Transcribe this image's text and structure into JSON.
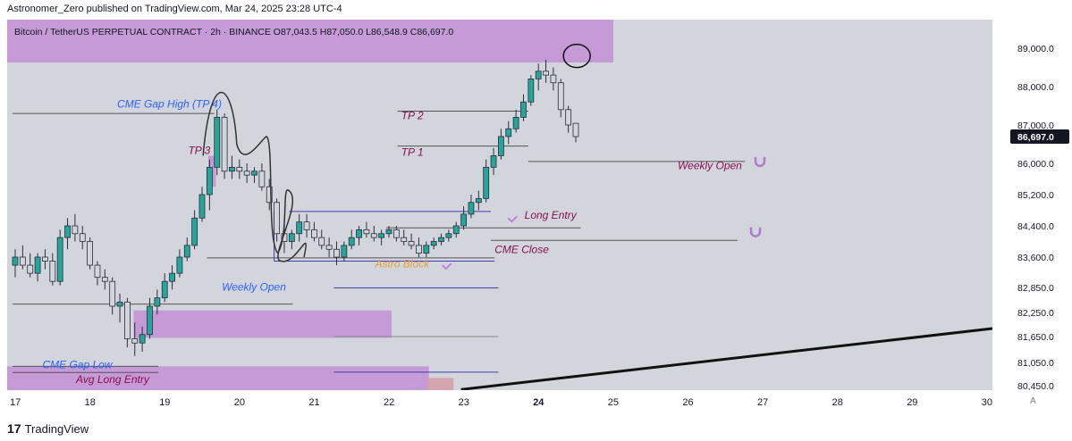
{
  "header": {
    "publisher": "Astronomer_Zero published on TradingView.com, Mar 24, 2025 23:28 UTC-4"
  },
  "footer": {
    "logo": "17",
    "brand": "TradingView"
  },
  "axis_corner": "A",
  "colors": {
    "up": "#26a69a",
    "down": "#787b86",
    "zone": "#c28fd6",
    "blue_label": "#2962ff",
    "red_label": "#880e4f"
  },
  "chart_data": {
    "type": "candlestick",
    "title": "Bitcoin / TetherUS PERPETUAL CONTRACT · 2h · BINANCE O87,043.5 H87,050.0 L86,548.9 C86,697.0",
    "price_scale": [
      89000.0,
      88000.0,
      87000.0,
      86000.0,
      85200.0,
      84400.0,
      83600.0,
      82850.0,
      82250.0,
      81650.0,
      81050.0,
      80450.0
    ],
    "price_tick_labels": [
      "89,000.0",
      "88,000.0",
      "87,000.0",
      "86,000.0",
      "85,200.0",
      "84,400.0",
      "83,600.0",
      "82,850.0",
      "82,250.0",
      "81,650.0",
      "81,050.0",
      "80,450.0"
    ],
    "last_price": 86697.0,
    "last_price_label": "86,697.0",
    "date_labels": [
      {
        "label": "17",
        "day": 17
      },
      {
        "label": "18",
        "day": 18
      },
      {
        "label": "19",
        "day": 19
      },
      {
        "label": "20",
        "day": 20
      },
      {
        "label": "21",
        "day": 21
      },
      {
        "label": "22",
        "day": 22
      },
      {
        "label": "23",
        "day": 23
      },
      {
        "label": "24",
        "day": 24
      },
      {
        "label": "25",
        "day": 25
      },
      {
        "label": "26",
        "day": 26
      },
      {
        "label": "27",
        "day": 27
      },
      {
        "label": "28",
        "day": 28
      },
      {
        "label": "29",
        "day": 29
      },
      {
        "label": "30",
        "day": 30
      }
    ],
    "annotations": [
      {
        "text": "CME Gap High (TP 4)",
        "day": 18.4,
        "price": 87450,
        "color": "blue"
      },
      {
        "text": "TP 3",
        "day": 19.35,
        "price": 86250,
        "color": "red"
      },
      {
        "text": "TP 2",
        "day": 22.2,
        "price": 87150,
        "color": "red"
      },
      {
        "text": "TP 1",
        "day": 22.2,
        "price": 86200,
        "color": "red"
      },
      {
        "text": "Weekly Open",
        "day": 25.9,
        "price": 85850,
        "color": "red"
      },
      {
        "text": "Long Entry",
        "day": 23.85,
        "price": 84580,
        "color": "red"
      },
      {
        "text": "CME Close",
        "day": 23.45,
        "price": 83700,
        "color": "red"
      },
      {
        "text": "Astro Block",
        "day": 21.85,
        "price": 83350,
        "color": "orange"
      },
      {
        "text": "Weekly Open",
        "day": 19.8,
        "price": 82780,
        "color": "blue"
      },
      {
        "text": "CME Gap Low",
        "day": 17.4,
        "price": 80900,
        "color": "blue"
      },
      {
        "text": "Avg Long Entry",
        "day": 17.85,
        "price": 80520,
        "color": "red"
      }
    ],
    "candles": [
      {
        "day": 17.0,
        "o": 83400,
        "h": 83800,
        "l": 83100,
        "c": 83600
      },
      {
        "day": 17.1,
        "o": 83600,
        "h": 83900,
        "l": 83300,
        "c": 83400
      },
      {
        "day": 17.2,
        "o": 83400,
        "h": 83700,
        "l": 83100,
        "c": 83200
      },
      {
        "day": 17.3,
        "o": 83200,
        "h": 83700,
        "l": 83000,
        "c": 83600
      },
      {
        "day": 17.4,
        "o": 83600,
        "h": 83800,
        "l": 83300,
        "c": 83500
      },
      {
        "day": 17.5,
        "o": 83500,
        "h": 83700,
        "l": 82900,
        "c": 83000
      },
      {
        "day": 17.6,
        "o": 83000,
        "h": 84300,
        "l": 82900,
        "c": 84100
      },
      {
        "day": 17.7,
        "o": 84100,
        "h": 84600,
        "l": 83800,
        "c": 84400
      },
      {
        "day": 17.8,
        "o": 84400,
        "h": 84700,
        "l": 84000,
        "c": 84200
      },
      {
        "day": 17.9,
        "o": 84200,
        "h": 84400,
        "l": 83800,
        "c": 84000
      },
      {
        "day": 18.0,
        "o": 84000,
        "h": 84100,
        "l": 83300,
        "c": 83400
      },
      {
        "day": 18.1,
        "o": 83400,
        "h": 83500,
        "l": 82900,
        "c": 83100
      },
      {
        "day": 18.2,
        "o": 83100,
        "h": 83300,
        "l": 82800,
        "c": 83000
      },
      {
        "day": 18.3,
        "o": 83000,
        "h": 83100,
        "l": 82200,
        "c": 82400
      },
      {
        "day": 18.4,
        "o": 82400,
        "h": 82700,
        "l": 82000,
        "c": 82500
      },
      {
        "day": 18.5,
        "o": 82500,
        "h": 82600,
        "l": 81400,
        "c": 81600
      },
      {
        "day": 18.6,
        "o": 81600,
        "h": 82000,
        "l": 81200,
        "c": 81500
      },
      {
        "day": 18.7,
        "o": 81500,
        "h": 81900,
        "l": 81300,
        "c": 81700
      },
      {
        "day": 18.8,
        "o": 81700,
        "h": 82600,
        "l": 81600,
        "c": 82400
      },
      {
        "day": 18.9,
        "o": 82400,
        "h": 82800,
        "l": 82200,
        "c": 82600
      },
      {
        "day": 19.0,
        "o": 82600,
        "h": 83200,
        "l": 82500,
        "c": 83000
      },
      {
        "day": 19.1,
        "o": 83000,
        "h": 83400,
        "l": 82800,
        "c": 83200
      },
      {
        "day": 19.2,
        "o": 83200,
        "h": 83800,
        "l": 83100,
        "c": 83600
      },
      {
        "day": 19.3,
        "o": 83600,
        "h": 84100,
        "l": 83500,
        "c": 83900
      },
      {
        "day": 19.4,
        "o": 83900,
        "h": 84800,
        "l": 83800,
        "c": 84600
      },
      {
        "day": 19.5,
        "o": 84600,
        "h": 85400,
        "l": 84500,
        "c": 85200
      },
      {
        "day": 19.6,
        "o": 85200,
        "h": 86100,
        "l": 84800,
        "c": 85900
      },
      {
        "day": 19.7,
        "o": 85900,
        "h": 87400,
        "l": 85700,
        "c": 87200
      },
      {
        "day": 19.8,
        "o": 87200,
        "h": 87300,
        "l": 85600,
        "c": 85800
      },
      {
        "day": 19.9,
        "o": 85800,
        "h": 86200,
        "l": 85600,
        "c": 85900
      },
      {
        "day": 20.0,
        "o": 85900,
        "h": 86100,
        "l": 85600,
        "c": 85800
      },
      {
        "day": 20.1,
        "o": 85800,
        "h": 86000,
        "l": 85500,
        "c": 85700
      },
      {
        "day": 20.2,
        "o": 85700,
        "h": 85900,
        "l": 85500,
        "c": 85800
      },
      {
        "day": 20.3,
        "o": 85800,
        "h": 86000,
        "l": 85300,
        "c": 85400
      },
      {
        "day": 20.4,
        "o": 85400,
        "h": 85600,
        "l": 84800,
        "c": 85000
      },
      {
        "day": 20.5,
        "o": 85000,
        "h": 85100,
        "l": 84000,
        "c": 84200
      },
      {
        "day": 20.6,
        "o": 84200,
        "h": 84500,
        "l": 83700,
        "c": 84000
      },
      {
        "day": 20.7,
        "o": 84000,
        "h": 84300,
        "l": 83800,
        "c": 84200
      },
      {
        "day": 20.8,
        "o": 84200,
        "h": 84700,
        "l": 84000,
        "c": 84500
      },
      {
        "day": 20.9,
        "o": 84500,
        "h": 84700,
        "l": 84100,
        "c": 84300
      },
      {
        "day": 21.0,
        "o": 84300,
        "h": 84500,
        "l": 84000,
        "c": 84100
      },
      {
        "day": 21.1,
        "o": 84100,
        "h": 84300,
        "l": 83800,
        "c": 83900
      },
      {
        "day": 21.2,
        "o": 83900,
        "h": 84100,
        "l": 83600,
        "c": 83800
      },
      {
        "day": 21.3,
        "o": 83800,
        "h": 84000,
        "l": 83400,
        "c": 83600
      },
      {
        "day": 21.4,
        "o": 83600,
        "h": 84000,
        "l": 83500,
        "c": 83900
      },
      {
        "day": 21.5,
        "o": 83900,
        "h": 84300,
        "l": 83800,
        "c": 84100
      },
      {
        "day": 21.6,
        "o": 84100,
        "h": 84400,
        "l": 83900,
        "c": 84300
      },
      {
        "day": 21.7,
        "o": 84300,
        "h": 84500,
        "l": 84100,
        "c": 84200
      },
      {
        "day": 21.8,
        "o": 84200,
        "h": 84400,
        "l": 84000,
        "c": 84100
      },
      {
        "day": 21.9,
        "o": 84100,
        "h": 84300,
        "l": 83900,
        "c": 84200
      },
      {
        "day": 22.0,
        "o": 84200,
        "h": 84400,
        "l": 84100,
        "c": 84300
      },
      {
        "day": 22.1,
        "o": 84300,
        "h": 84400,
        "l": 84000,
        "c": 84100
      },
      {
        "day": 22.2,
        "o": 84100,
        "h": 84300,
        "l": 83900,
        "c": 84000
      },
      {
        "day": 22.3,
        "o": 84000,
        "h": 84200,
        "l": 83800,
        "c": 83900
      },
      {
        "day": 22.4,
        "o": 83900,
        "h": 84100,
        "l": 83600,
        "c": 83700
      },
      {
        "day": 22.5,
        "o": 83700,
        "h": 84000,
        "l": 83600,
        "c": 83900
      },
      {
        "day": 22.6,
        "o": 83900,
        "h": 84100,
        "l": 83800,
        "c": 84000
      },
      {
        "day": 22.7,
        "o": 84000,
        "h": 84200,
        "l": 83900,
        "c": 84100
      },
      {
        "day": 22.8,
        "o": 84100,
        "h": 84300,
        "l": 84000,
        "c": 84200
      },
      {
        "day": 22.9,
        "o": 84200,
        "h": 84500,
        "l": 84100,
        "c": 84400
      },
      {
        "day": 23.0,
        "o": 84400,
        "h": 84900,
        "l": 84300,
        "c": 84700
      },
      {
        "day": 23.1,
        "o": 84700,
        "h": 85200,
        "l": 84600,
        "c": 85000
      },
      {
        "day": 23.2,
        "o": 85000,
        "h": 85300,
        "l": 84800,
        "c": 85100
      },
      {
        "day": 23.3,
        "o": 85100,
        "h": 86100,
        "l": 85000,
        "c": 85900
      },
      {
        "day": 23.4,
        "o": 85900,
        "h": 86400,
        "l": 85700,
        "c": 86200
      },
      {
        "day": 23.5,
        "o": 86200,
        "h": 86900,
        "l": 86100,
        "c": 86700
      },
      {
        "day": 23.6,
        "o": 86700,
        "h": 87100,
        "l": 86500,
        "c": 86900
      },
      {
        "day": 23.7,
        "o": 86900,
        "h": 87400,
        "l": 86800,
        "c": 87200
      },
      {
        "day": 23.8,
        "o": 87200,
        "h": 87800,
        "l": 87100,
        "c": 87600
      },
      {
        "day": 23.9,
        "o": 87600,
        "h": 88300,
        "l": 87500,
        "c": 88200
      },
      {
        "day": 24.0,
        "o": 88200,
        "h": 88600,
        "l": 87900,
        "c": 88400
      },
      {
        "day": 24.1,
        "o": 88400,
        "h": 88700,
        "l": 88100,
        "c": 88300
      },
      {
        "day": 24.2,
        "o": 88300,
        "h": 88500,
        "l": 87900,
        "c": 88100
      },
      {
        "day": 24.3,
        "o": 88100,
        "h": 88200,
        "l": 87200,
        "c": 87400
      },
      {
        "day": 24.4,
        "o": 87400,
        "h": 87500,
        "l": 86800,
        "c": 87000
      },
      {
        "day": 24.5,
        "o": 87043.5,
        "h": 87050.0,
        "l": 86548.9,
        "c": 86697.0
      }
    ]
  }
}
